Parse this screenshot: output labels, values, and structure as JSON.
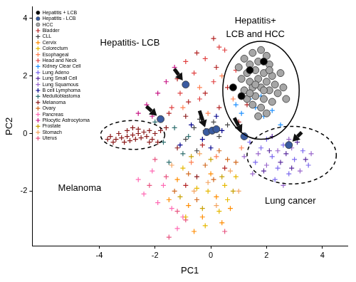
{
  "chart_data": {
    "type": "scatter",
    "x_label": "PC1",
    "y_label": "PC2",
    "xlim": [
      -6.4,
      4.9
    ],
    "ylim": [
      -3.9,
      4.4
    ],
    "xticks": [
      -4,
      -2,
      0,
      2,
      4
    ],
    "yticks": [
      -2,
      0,
      2,
      4
    ],
    "grid": false,
    "legend": "upper left",
    "annotations": [
      "Hepatitis- LCB",
      "Hepatitis+",
      "LCB and HCC",
      "Melanoma",
      "Lung cancer"
    ],
    "series": [
      {
        "name": "Hepatitis + LCB",
        "color": "#000000",
        "marker": "circle",
        "values": [
          [
            0.8,
            1.6
          ],
          [
            1.4,
            2.2
          ],
          [
            1.9,
            2.5
          ],
          [
            1.1,
            1.3
          ]
        ]
      },
      {
        "name": "Hepatitis - LCB",
        "color": "#3a5ba0",
        "marker": "circle",
        "values": [
          [
            -0.9,
            1.7
          ],
          [
            -1.8,
            0.5
          ],
          [
            -0.15,
            0.05
          ],
          [
            0.05,
            0.1
          ],
          [
            0.2,
            0.15
          ],
          [
            1.2,
            -0.1
          ],
          [
            2.8,
            -0.4
          ]
        ]
      },
      {
        "name": "HCC",
        "color": "#a6a6a6",
        "marker": "circle",
        "values": [
          [
            1.2,
            2.6
          ],
          [
            1.5,
            2.8
          ],
          [
            1.8,
            2.9
          ],
          [
            2.0,
            2.7
          ],
          [
            1.4,
            2.4
          ],
          [
            1.7,
            2.5
          ],
          [
            2.1,
            2.4
          ],
          [
            1.3,
            2.1
          ],
          [
            1.6,
            2.2
          ],
          [
            1.9,
            2.1
          ],
          [
            2.2,
            2.0
          ],
          [
            1.1,
            1.9
          ],
          [
            1.4,
            1.8
          ],
          [
            1.7,
            1.9
          ],
          [
            2.0,
            1.8
          ],
          [
            2.3,
            1.7
          ],
          [
            1.2,
            1.5
          ],
          [
            1.5,
            1.6
          ],
          [
            1.8,
            1.6
          ],
          [
            2.1,
            1.5
          ],
          [
            2.4,
            1.4
          ],
          [
            1.3,
            1.2
          ],
          [
            1.6,
            1.3
          ],
          [
            1.9,
            1.2
          ],
          [
            2.2,
            1.1
          ],
          [
            1.5,
            1.0
          ],
          [
            1.8,
            0.9
          ],
          [
            2.0,
            0.7
          ],
          [
            1.7,
            0.6
          ],
          [
            2.6,
            1.6
          ],
          [
            2.5,
            2.1
          ],
          [
            1.0,
            2.3
          ],
          [
            1.6,
            1.7
          ],
          [
            1.9,
            1.5
          ],
          [
            2.1,
            2.2
          ],
          [
            1.4,
            1.4
          ],
          [
            2.7,
            1.2
          ]
        ]
      },
      {
        "name": "Bladder",
        "color": "#b22222",
        "marker": "plus",
        "values": [
          [
            -0.5,
            2.8
          ],
          [
            0.2,
            2.3
          ],
          [
            -1.2,
            1.9
          ],
          [
            0.6,
            1.6
          ],
          [
            -0.8,
            1.1
          ],
          [
            0.3,
            0.9
          ],
          [
            -1.5,
            0.7
          ],
          [
            1.0,
            0.4
          ],
          [
            -0.3,
            -0.4
          ],
          [
            0.5,
            -1.2
          ],
          [
            -0.9,
            -1.8
          ],
          [
            0.1,
            3.3
          ],
          [
            -0.2,
            1.4
          ],
          [
            1.3,
            1.0
          ]
        ]
      },
      {
        "name": "CLL",
        "color": "#444444",
        "marker": "plus",
        "values": [
          [
            -0.6,
            0.2
          ],
          [
            -0.4,
            0.5
          ],
          [
            -0.2,
            0.1
          ],
          [
            0.1,
            0.4
          ],
          [
            -0.9,
            -0.2
          ],
          [
            0.3,
            -0.1
          ],
          [
            -0.5,
            -0.6
          ],
          [
            0.6,
            0.3
          ]
        ]
      },
      {
        "name": "Cervix",
        "color": "#ff8c00",
        "marker": "plus",
        "values": [
          [
            -0.8,
            -2.5
          ],
          [
            -0.3,
            -2.9
          ],
          [
            0.2,
            -2.2
          ],
          [
            -1.2,
            -1.6
          ],
          [
            0.4,
            -3.1
          ],
          [
            -0.6,
            -3.4
          ],
          [
            0.0,
            -1.4
          ],
          [
            -1.5,
            -2.3
          ],
          [
            0.7,
            -2.6
          ]
        ]
      },
      {
        "name": "Colorectum",
        "color": "#e6b800",
        "marker": "plus",
        "values": [
          [
            -0.1,
            -2.0
          ],
          [
            0.5,
            -1.8
          ],
          [
            -0.5,
            -1.9
          ],
          [
            0.3,
            -2.7
          ],
          [
            -0.9,
            -2.9
          ],
          [
            0.9,
            -1.5
          ],
          [
            -0.2,
            -3.2
          ],
          [
            0.6,
            -2.3
          ],
          [
            -1.0,
            -1.2
          ]
        ]
      },
      {
        "name": "Esophageal",
        "color": "#ff7f50",
        "marker": "plus",
        "values": [
          [
            -0.4,
            1.6
          ],
          [
            0.4,
            2.0
          ],
          [
            -1.0,
            0.9
          ],
          [
            0.8,
            1.2
          ],
          [
            -0.1,
            0.7
          ],
          [
            0.2,
            -0.8
          ],
          [
            -0.7,
            -1.0
          ],
          [
            1.1,
            -0.5
          ]
        ]
      },
      {
        "name": "Head and Neck",
        "color": "#e04040",
        "marker": "plus",
        "values": [
          [
            -0.6,
            2.1
          ],
          [
            -0.2,
            2.6
          ],
          [
            0.5,
            2.9
          ],
          [
            -1.1,
            1.4
          ],
          [
            0.1,
            1.8
          ],
          [
            0.9,
            2.2
          ],
          [
            -0.4,
            1.2
          ],
          [
            -0.9,
            2.5
          ],
          [
            0.3,
            3.0
          ],
          [
            -1.4,
            0.9
          ]
        ]
      },
      {
        "name": "Kidney Clear Cell",
        "color": "#1e90ff",
        "marker": "plus",
        "values": [
          [
            1.6,
            0.9
          ],
          [
            1.9,
            0.6
          ],
          [
            1.4,
            1.2
          ],
          [
            2.2,
            0.8
          ],
          [
            1.1,
            0.7
          ],
          [
            2.5,
            0.3
          ],
          [
            1.8,
            1.3
          ],
          [
            0.9,
            1.0
          ]
        ]
      },
      {
        "name": "Lung Adeno",
        "color": "#7b68ee",
        "marker": "plus",
        "values": [
          [
            1.8,
            -0.5
          ],
          [
            2.2,
            -0.8
          ],
          [
            2.6,
            -0.4
          ],
          [
            3.0,
            -0.9
          ],
          [
            2.4,
            -1.2
          ],
          [
            1.6,
            -1.0
          ],
          [
            3.3,
            -0.6
          ],
          [
            2.0,
            -0.2
          ],
          [
            2.8,
            -1.4
          ],
          [
            3.5,
            -1.1
          ],
          [
            1.4,
            -0.3
          ],
          [
            2.3,
            -1.6
          ]
        ]
      },
      {
        "name": "Lung Small Cell",
        "color": "#5b2c9f",
        "marker": "plus",
        "values": [
          [
            2.1,
            -0.6
          ],
          [
            2.7,
            -0.7
          ],
          [
            3.1,
            -0.3
          ],
          [
            2.5,
            -1.0
          ],
          [
            1.9,
            -1.3
          ],
          [
            3.4,
            -0.9
          ],
          [
            2.9,
            -1.2
          ],
          [
            2.2,
            -0.1
          ]
        ]
      },
      {
        "name": "Lung Squamous",
        "color": "#9966cc",
        "marker": "plus",
        "values": [
          [
            1.7,
            -0.7
          ],
          [
            2.4,
            -0.6
          ],
          [
            2.9,
            -0.5
          ],
          [
            3.2,
            -1.3
          ],
          [
            2.0,
            -1.1
          ],
          [
            2.6,
            -1.8
          ],
          [
            1.5,
            -1.4
          ],
          [
            3.6,
            -0.7
          ],
          [
            2.8,
            -0.2
          ],
          [
            1.2,
            -0.8
          ]
        ]
      },
      {
        "name": "B cell Lymphoma",
        "color": "#00008b",
        "marker": "plus",
        "values": [
          [
            -0.3,
            -0.2
          ],
          [
            0.0,
            -0.5
          ],
          [
            -0.7,
            0.3
          ],
          [
            0.4,
            0.1
          ],
          [
            -1.1,
            -0.4
          ],
          [
            0.2,
            0.6
          ]
        ]
      },
      {
        "name": "Medulloblastoma",
        "color": "#2f6f6f",
        "marker": "plus",
        "values": [
          [
            -1.3,
            0.2
          ],
          [
            -1.7,
            -0.3
          ],
          [
            -1.0,
            -0.7
          ],
          [
            -2.0,
            0.4
          ],
          [
            -1.5,
            -1.0
          ],
          [
            -0.8,
            -0.1
          ]
        ]
      },
      {
        "name": "Melanoma",
        "color": "#8b1a1a",
        "marker": "plus",
        "values": [
          [
            -3.6,
            -0.1
          ],
          [
            -3.4,
            -0.2
          ],
          [
            -3.2,
            -0.15
          ],
          [
            -3.0,
            -0.1
          ],
          [
            -2.8,
            -0.05
          ],
          [
            -2.6,
            0.0
          ],
          [
            -2.4,
            0.05
          ],
          [
            -2.2,
            0.1
          ],
          [
            -2.0,
            0.0
          ],
          [
            -1.8,
            0.1
          ],
          [
            -3.3,
            0.0
          ],
          [
            -3.1,
            -0.3
          ],
          [
            -2.9,
            -0.25
          ],
          [
            -2.7,
            -0.2
          ],
          [
            -2.5,
            -0.15
          ],
          [
            -2.3,
            -0.1
          ],
          [
            -2.1,
            -0.2
          ],
          [
            -3.5,
            -0.3
          ],
          [
            -3.0,
            0.1
          ],
          [
            -2.6,
            0.15
          ],
          [
            -2.2,
            -0.3
          ],
          [
            -2.8,
            0.2
          ],
          [
            -1.6,
            0.2
          ],
          [
            -1.9,
            -0.3
          ],
          [
            -3.7,
            -0.2
          ],
          [
            -1.2,
            -0.5
          ],
          [
            -0.9,
            0.6
          ],
          [
            -0.5,
            -1.5
          ]
        ]
      },
      {
        "name": "Ovary",
        "color": "#d2691e",
        "marker": "plus",
        "values": [
          [
            -0.2,
            -1.1
          ],
          [
            0.6,
            -0.9
          ],
          [
            -0.8,
            -1.4
          ],
          [
            0.1,
            -1.6
          ],
          [
            -1.3,
            -2.0
          ],
          [
            0.9,
            -1.0
          ],
          [
            -0.5,
            -2.3
          ],
          [
            0.3,
            -0.6
          ]
        ]
      },
      {
        "name": "Pancreas",
        "color": "#ff69b4",
        "marker": "plus",
        "values": [
          [
            -2.1,
            -1.3
          ],
          [
            -1.7,
            -1.8
          ],
          [
            -1.4,
            -2.6
          ],
          [
            -2.4,
            -2.1
          ],
          [
            -1.0,
            -2.9
          ],
          [
            -1.9,
            -2.4
          ],
          [
            -2.6,
            -1.6
          ],
          [
            -1.2,
            -3.3
          ]
        ]
      },
      {
        "name": "Pilocytic Astrocytoma",
        "color": "#c71585",
        "marker": "plus",
        "values": [
          [
            -2.3,
            1.0
          ],
          [
            -1.9,
            1.4
          ],
          [
            -2.6,
            0.7
          ],
          [
            -1.6,
            1.8
          ],
          [
            -2.1,
            0.6
          ],
          [
            -1.3,
            2.3
          ]
        ]
      },
      {
        "name": "Prostate",
        "color": "#c8a000",
        "marker": "plus",
        "values": [
          [
            -0.7,
            -0.8
          ],
          [
            0.4,
            -1.5
          ],
          [
            -0.3,
            -2.6
          ],
          [
            0.8,
            -2.0
          ],
          [
            -1.1,
            -2.2
          ],
          [
            0.0,
            -0.9
          ]
        ]
      },
      {
        "name": "Stomach",
        "color": "#f4a460",
        "marker": "plus",
        "values": [
          [
            -0.1,
            -1.7
          ],
          [
            0.7,
            -1.3
          ],
          [
            -0.6,
            -2.0
          ],
          [
            0.2,
            -2.5
          ],
          [
            -1.4,
            -1.1
          ],
          [
            1.0,
            -2.0
          ],
          [
            -0.4,
            -0.7
          ]
        ]
      },
      {
        "name": "Uterus",
        "color": "#e75480",
        "marker": "plus",
        "values": [
          [
            -1.6,
            -1.5
          ],
          [
            -2.0,
            -0.9
          ],
          [
            -1.2,
            -2.7
          ],
          [
            -0.9,
            -3.0
          ],
          [
            -2.2,
            -1.8
          ],
          [
            -1.5,
            -3.6
          ],
          [
            0.5,
            -3.4
          ]
        ]
      }
    ]
  }
}
